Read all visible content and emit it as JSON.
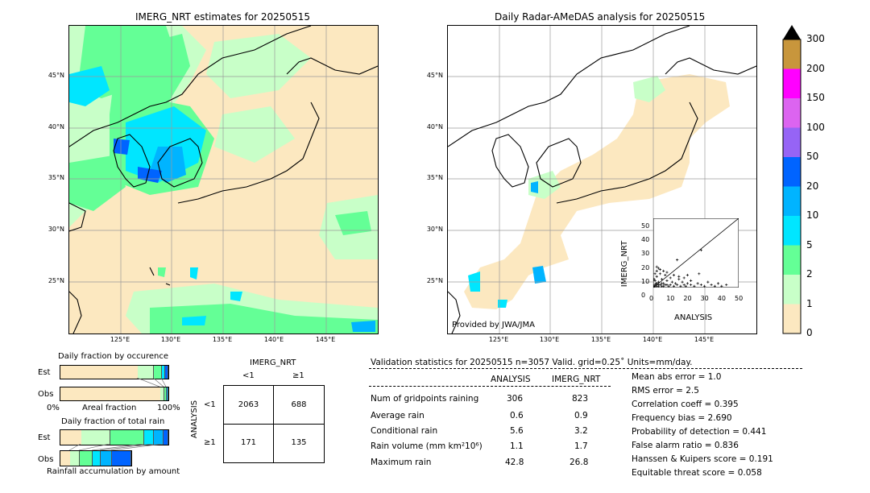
{
  "left_panel": {
    "title": "IMERG_NRT estimates for 20250515",
    "lat_labels": [
      "45°N",
      "40°N",
      "35°N",
      "30°N",
      "25°N"
    ],
    "lon_labels": [
      "125°E",
      "130°E",
      "135°E",
      "140°E",
      "145°E"
    ]
  },
  "right_panel": {
    "title": "Daily Radar-AMeDAS analysis for 20250515",
    "lat_labels": [
      "45°N",
      "40°N",
      "35°N",
      "30°N",
      "25°N"
    ],
    "lon_labels": [
      "125°E",
      "130°E",
      "135°E",
      "140°E",
      "145°E"
    ],
    "credit": "Provided by JWA/JMA"
  },
  "colorbar": {
    "labels": [
      "300",
      "200",
      "150",
      "100",
      "50",
      "20",
      "10",
      "5",
      "2",
      "1",
      "0"
    ],
    "colors": [
      "#c8963c",
      "#ff00ff",
      "#dc64f0",
      "#9664f5",
      "#0064ff",
      "#00b4ff",
      "#00e6ff",
      "#64ff96",
      "#c8ffc8",
      "#fce8c0"
    ]
  },
  "fraction_occurrence": {
    "title": "Daily fraction by occurence",
    "rows": [
      "Est",
      "Obs"
    ],
    "xlabel_left": "0%",
    "xlabel_mid": "Areal fraction",
    "xlabel_right": "100%"
  },
  "fraction_total": {
    "title": "Daily fraction of total rain",
    "rows": [
      "Est",
      "Obs"
    ],
    "xlabel": "Rainfall accumulation by amount"
  },
  "contingency": {
    "col_title": "IMERG_NRT",
    "col_labels": [
      "<1",
      "≥1"
    ],
    "row_title": "ANALYSIS",
    "row_labels": [
      "<1",
      "≥1"
    ],
    "values": [
      [
        "2063",
        "688"
      ],
      [
        "171",
        "135"
      ]
    ]
  },
  "validation": {
    "header": "Validation statistics for 20250515  n=3057 Valid. grid=0.25˚ Units=mm/day.",
    "col_analysis": "ANALYSIS",
    "col_imerg": "IMERG_NRT",
    "rows": [
      {
        "label": "Num of gridpoints raining",
        "analysis": "306",
        "imerg": "823"
      },
      {
        "label": "Average rain",
        "analysis": "0.6",
        "imerg": "0.9"
      },
      {
        "label": "Conditional rain",
        "analysis": "5.6",
        "imerg": "3.2"
      },
      {
        "label": "Rain volume (mm km²10⁶)",
        "analysis": "1.1",
        "imerg": "1.7"
      },
      {
        "label": "Maximum rain",
        "analysis": "42.8",
        "imerg": "26.8"
      }
    ],
    "scores": [
      "Mean abs error =    1.0",
      "RMS error =    2.5",
      "Correlation coeff =  0.395",
      "Frequency bias =  2.690",
      "Probability of detection =  0.441",
      "False alarm ratio =  0.836",
      "Hanssen & Kuipers score =  0.191",
      "Equitable threat score =  0.058"
    ]
  },
  "chart_data": {
    "type": "scatter",
    "xlabel": "ANALYSIS",
    "ylabel": "IMERG_NRT",
    "xlim": [
      0,
      50
    ],
    "ylim": [
      0,
      50
    ],
    "ticks": [
      "0",
      "10",
      "20",
      "30",
      "40",
      "50"
    ],
    "points": [
      [
        0.5,
        1
      ],
      [
        1,
        2
      ],
      [
        1,
        5
      ],
      [
        1.5,
        3
      ],
      [
        2,
        8
      ],
      [
        2,
        12
      ],
      [
        3,
        1
      ],
      [
        3,
        4
      ],
      [
        4,
        2
      ],
      [
        4,
        10
      ],
      [
        5,
        1
      ],
      [
        5,
        6
      ],
      [
        6,
        3
      ],
      [
        7,
        2
      ],
      [
        8,
        5
      ],
      [
        9,
        1
      ],
      [
        10,
        2
      ],
      [
        11,
        4
      ],
      [
        12,
        1
      ],
      [
        13,
        3
      ],
      [
        14,
        2
      ],
      [
        15,
        6
      ],
      [
        16,
        1
      ],
      [
        17,
        4
      ],
      [
        18,
        2
      ],
      [
        19,
        1
      ],
      [
        20,
        3
      ],
      [
        22,
        2
      ],
      [
        24,
        1
      ],
      [
        26,
        3
      ],
      [
        28,
        2
      ],
      [
        30,
        1
      ],
      [
        32,
        4
      ],
      [
        34,
        2
      ],
      [
        36,
        1
      ],
      [
        38,
        3
      ],
      [
        40,
        1
      ],
      [
        42.8,
        2
      ],
      [
        2,
        15
      ],
      [
        3,
        14
      ],
      [
        4,
        13
      ],
      [
        6,
        12
      ],
      [
        8,
        11
      ],
      [
        12,
        9
      ],
      [
        15,
        8
      ],
      [
        18,
        7
      ],
      [
        20,
        9
      ],
      [
        22,
        5
      ],
      [
        28,
        27
      ],
      [
        14,
        20
      ],
      [
        10,
        7
      ],
      [
        7,
        9
      ],
      [
        1,
        10
      ],
      [
        0.5,
        6
      ],
      [
        2,
        3
      ],
      [
        3,
        2
      ],
      [
        1,
        1
      ],
      [
        2,
        1
      ],
      [
        5,
        3
      ],
      [
        6,
        1
      ],
      [
        8,
        2
      ],
      [
        26.8,
        10
      ]
    ]
  }
}
